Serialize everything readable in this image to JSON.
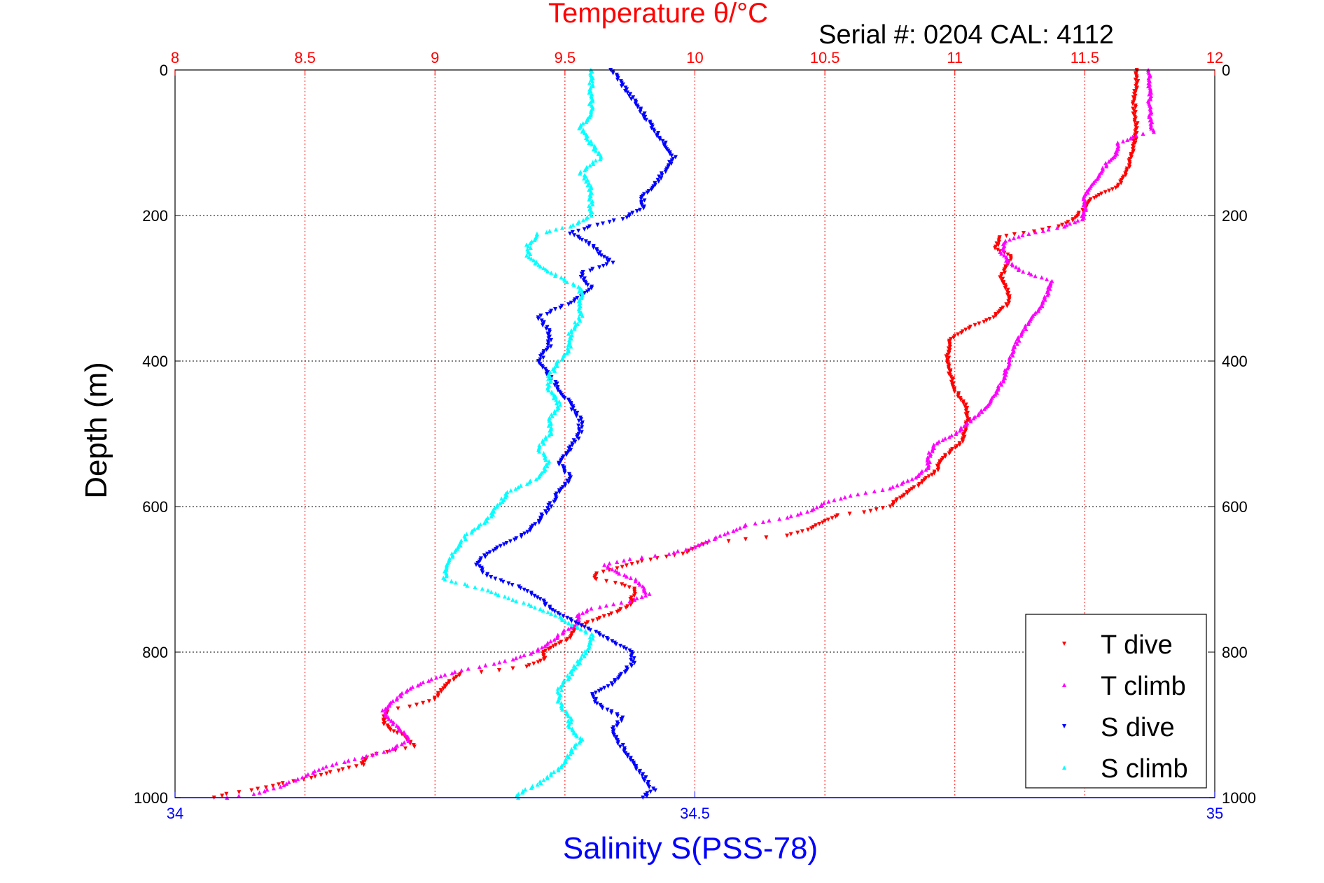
{
  "chart_data": {
    "type": "scatter",
    "title": "Temperature θ/°C",
    "subtitle": "Serial #: 0204  CAL: 4112",
    "top_axis": {
      "label": "Temperature θ/°C",
      "range": [
        8,
        12
      ],
      "ticks": [
        "8",
        "8.5",
        "9",
        "9.5",
        "10",
        "10.5",
        "11",
        "11.5",
        "12"
      ],
      "color": "#ff0000",
      "grid": true
    },
    "bottom_axis": {
      "label": "Salinity S(PSS-78)",
      "range": [
        34,
        35
      ],
      "ticks": [
        "34",
        "34.5",
        "35"
      ],
      "color": "#0000ff"
    },
    "y_axis": {
      "label": "Depth (m)",
      "range": [
        0,
        1000
      ],
      "reversed": true,
      "ticks": [
        "0",
        "200",
        "400",
        "600",
        "800",
        "1000"
      ],
      "grid": true
    },
    "legend": {
      "position": "bottom-right",
      "entries": [
        "T dive",
        "T climb",
        "S dive",
        "S climb"
      ]
    },
    "series": [
      {
        "name": "T dive",
        "axis": "temperature",
        "color": "#ff0000",
        "marker": "triangle-down",
        "points": [
          [
            11.7,
            0
          ],
          [
            11.7,
            20
          ],
          [
            11.69,
            40
          ],
          [
            11.69,
            60
          ],
          [
            11.7,
            80
          ],
          [
            11.69,
            100
          ],
          [
            11.68,
            120
          ],
          [
            11.66,
            140
          ],
          [
            11.63,
            160
          ],
          [
            11.56,
            170
          ],
          [
            11.52,
            180
          ],
          [
            11.5,
            190
          ],
          [
            11.46,
            205
          ],
          [
            11.4,
            215
          ],
          [
            11.3,
            222
          ],
          [
            11.17,
            230
          ],
          [
            11.16,
            245
          ],
          [
            11.22,
            258
          ],
          [
            11.2,
            270
          ],
          [
            11.18,
            285
          ],
          [
            11.2,
            300
          ],
          [
            11.21,
            320
          ],
          [
            11.15,
            340
          ],
          [
            11.05,
            355
          ],
          [
            10.98,
            370
          ],
          [
            10.97,
            400
          ],
          [
            10.98,
            415
          ],
          [
            11.0,
            440
          ],
          [
            11.04,
            460
          ],
          [
            11.05,
            480
          ],
          [
            11.04,
            500
          ],
          [
            11.02,
            515
          ],
          [
            10.98,
            525
          ],
          [
            10.94,
            540
          ],
          [
            10.93,
            550
          ],
          [
            10.88,
            565
          ],
          [
            10.82,
            580
          ],
          [
            10.78,
            590
          ],
          [
            10.75,
            600
          ],
          [
            10.65,
            608
          ],
          [
            10.55,
            612
          ],
          [
            10.5,
            620
          ],
          [
            10.45,
            630
          ],
          [
            10.35,
            640
          ],
          [
            10.2,
            645
          ],
          [
            10.05,
            650
          ],
          [
            9.95,
            665
          ],
          [
            9.8,
            675
          ],
          [
            9.7,
            685
          ],
          [
            9.62,
            692
          ],
          [
            9.62,
            700
          ],
          [
            9.7,
            705
          ],
          [
            9.77,
            713
          ],
          [
            9.76,
            725
          ],
          [
            9.75,
            735
          ],
          [
            9.7,
            745
          ],
          [
            9.62,
            755
          ],
          [
            9.55,
            765
          ],
          [
            9.52,
            780
          ],
          [
            9.47,
            790
          ],
          [
            9.42,
            800
          ],
          [
            9.42,
            810
          ],
          [
            9.35,
            820
          ],
          [
            9.25,
            825
          ],
          [
            9.1,
            830
          ],
          [
            9.06,
            840
          ],
          [
            9.03,
            850
          ],
          [
            9.0,
            865
          ],
          [
            8.96,
            870
          ],
          [
            8.9,
            875
          ],
          [
            8.82,
            880
          ],
          [
            8.8,
            895
          ],
          [
            8.82,
            905
          ],
          [
            8.88,
            915
          ],
          [
            8.92,
            930
          ],
          [
            8.85,
            935
          ],
          [
            8.78,
            940
          ],
          [
            8.74,
            945
          ],
          [
            8.72,
            955
          ],
          [
            8.6,
            965
          ],
          [
            8.5,
            975
          ],
          [
            8.42,
            980
          ],
          [
            8.3,
            990
          ],
          [
            8.2,
            995
          ],
          [
            8.15,
            1000
          ]
        ]
      },
      {
        "name": "T climb",
        "axis": "temperature",
        "color": "#ff00ff",
        "marker": "triangle-up",
        "points": [
          [
            11.75,
            0
          ],
          [
            11.75,
            20
          ],
          [
            11.75,
            40
          ],
          [
            11.75,
            60
          ],
          [
            11.76,
            85
          ],
          [
            11.7,
            90
          ],
          [
            11.63,
            100
          ],
          [
            11.62,
            115
          ],
          [
            11.58,
            130
          ],
          [
            11.55,
            150
          ],
          [
            11.52,
            162
          ],
          [
            11.5,
            175
          ],
          [
            11.5,
            190
          ],
          [
            11.49,
            205
          ],
          [
            11.42,
            215
          ],
          [
            11.28,
            225
          ],
          [
            11.19,
            235
          ],
          [
            11.18,
            250
          ],
          [
            11.2,
            262
          ],
          [
            11.25,
            275
          ],
          [
            11.33,
            285
          ],
          [
            11.37,
            290
          ],
          [
            11.36,
            305
          ],
          [
            11.34,
            320
          ],
          [
            11.3,
            340
          ],
          [
            11.25,
            365
          ],
          [
            11.22,
            390
          ],
          [
            11.2,
            410
          ],
          [
            11.18,
            430
          ],
          [
            11.14,
            455
          ],
          [
            11.1,
            470
          ],
          [
            11.05,
            485
          ],
          [
            11.0,
            500
          ],
          [
            10.92,
            515
          ],
          [
            10.9,
            530
          ],
          [
            10.9,
            545
          ],
          [
            10.85,
            560
          ],
          [
            10.75,
            575
          ],
          [
            10.6,
            585
          ],
          [
            10.5,
            595
          ],
          [
            10.45,
            605
          ],
          [
            10.35,
            615
          ],
          [
            10.2,
            625
          ],
          [
            10.1,
            640
          ],
          [
            10.0,
            655
          ],
          [
            9.9,
            665
          ],
          [
            9.75,
            672
          ],
          [
            9.65,
            680
          ],
          [
            9.7,
            690
          ],
          [
            9.77,
            700
          ],
          [
            9.8,
            712
          ],
          [
            9.82,
            720
          ],
          [
            9.75,
            730
          ],
          [
            9.6,
            740
          ],
          [
            9.55,
            750
          ],
          [
            9.55,
            760
          ],
          [
            9.5,
            770
          ],
          [
            9.45,
            785
          ],
          [
            9.38,
            800
          ],
          [
            9.3,
            810
          ],
          [
            9.2,
            818
          ],
          [
            9.1,
            825
          ],
          [
            9.0,
            835
          ],
          [
            8.9,
            850
          ],
          [
            8.85,
            865
          ],
          [
            8.8,
            880
          ],
          [
            8.82,
            892
          ],
          [
            8.88,
            910
          ],
          [
            8.9,
            922
          ],
          [
            8.82,
            935
          ],
          [
            8.72,
            945
          ],
          [
            8.6,
            955
          ],
          [
            8.5,
            970
          ],
          [
            8.4,
            985
          ],
          [
            8.3,
            995
          ],
          [
            8.2,
            1000
          ]
        ]
      },
      {
        "name": "S dive",
        "axis": "salinity",
        "color": "#0000ff",
        "marker": "triangle-down",
        "points": [
          [
            34.42,
            0
          ],
          [
            34.43,
            20
          ],
          [
            34.44,
            40
          ],
          [
            34.45,
            60
          ],
          [
            34.46,
            80
          ],
          [
            34.47,
            100
          ],
          [
            34.48,
            120
          ],
          [
            34.47,
            140
          ],
          [
            34.46,
            160
          ],
          [
            34.45,
            175
          ],
          [
            34.45,
            190
          ],
          [
            34.43,
            205
          ],
          [
            34.4,
            215
          ],
          [
            34.38,
            225
          ],
          [
            34.4,
            240
          ],
          [
            34.41,
            255
          ],
          [
            34.42,
            265
          ],
          [
            34.39,
            280
          ],
          [
            34.4,
            300
          ],
          [
            34.38,
            320
          ],
          [
            34.35,
            340
          ],
          [
            34.36,
            360
          ],
          [
            34.36,
            380
          ],
          [
            34.35,
            400
          ],
          [
            34.36,
            420
          ],
          [
            34.37,
            440
          ],
          [
            34.38,
            460
          ],
          [
            34.39,
            480
          ],
          [
            34.39,
            500
          ],
          [
            34.38,
            520
          ],
          [
            34.37,
            540
          ],
          [
            34.38,
            560
          ],
          [
            34.37,
            580
          ],
          [
            34.36,
            600
          ],
          [
            34.35,
            620
          ],
          [
            34.34,
            635
          ],
          [
            34.32,
            650
          ],
          [
            34.3,
            665
          ],
          [
            34.29,
            680
          ],
          [
            34.3,
            695
          ],
          [
            34.33,
            710
          ],
          [
            34.35,
            725
          ],
          [
            34.36,
            740
          ],
          [
            34.38,
            755
          ],
          [
            34.4,
            770
          ],
          [
            34.42,
            785
          ],
          [
            34.44,
            800
          ],
          [
            34.44,
            815
          ],
          [
            34.43,
            830
          ],
          [
            34.42,
            845
          ],
          [
            34.4,
            860
          ],
          [
            34.41,
            875
          ],
          [
            34.43,
            890
          ],
          [
            34.42,
            910
          ],
          [
            34.43,
            930
          ],
          [
            34.44,
            950
          ],
          [
            34.45,
            970
          ],
          [
            34.46,
            990
          ],
          [
            34.45,
            1000
          ]
        ]
      },
      {
        "name": "S climb",
        "axis": "salinity",
        "color": "#00ffff",
        "marker": "triangle-up",
        "points": [
          [
            34.4,
            0
          ],
          [
            34.4,
            20
          ],
          [
            34.4,
            40
          ],
          [
            34.4,
            60
          ],
          [
            34.39,
            80
          ],
          [
            34.4,
            100
          ],
          [
            34.41,
            120
          ],
          [
            34.39,
            140
          ],
          [
            34.4,
            160
          ],
          [
            34.4,
            180
          ],
          [
            34.4,
            200
          ],
          [
            34.38,
            215
          ],
          [
            34.35,
            225
          ],
          [
            34.34,
            240
          ],
          [
            34.34,
            255
          ],
          [
            34.35,
            270
          ],
          [
            34.37,
            285
          ],
          [
            34.39,
            300
          ],
          [
            34.39,
            320
          ],
          [
            34.39,
            340
          ],
          [
            34.38,
            360
          ],
          [
            34.38,
            380
          ],
          [
            34.37,
            400
          ],
          [
            34.36,
            420
          ],
          [
            34.36,
            440
          ],
          [
            34.37,
            460
          ],
          [
            34.36,
            480
          ],
          [
            34.36,
            500
          ],
          [
            34.35,
            520
          ],
          [
            34.36,
            540
          ],
          [
            34.35,
            560
          ],
          [
            34.32,
            580
          ],
          [
            34.31,
            600
          ],
          [
            34.3,
            620
          ],
          [
            34.28,
            640
          ],
          [
            34.27,
            660
          ],
          [
            34.26,
            680
          ],
          [
            34.26,
            700
          ],
          [
            34.3,
            715
          ],
          [
            34.33,
            730
          ],
          [
            34.36,
            745
          ],
          [
            34.38,
            760
          ],
          [
            34.4,
            775
          ],
          [
            34.4,
            790
          ],
          [
            34.39,
            810
          ],
          [
            34.38,
            830
          ],
          [
            34.37,
            850
          ],
          [
            34.37,
            870
          ],
          [
            34.38,
            890
          ],
          [
            34.38,
            905
          ],
          [
            34.39,
            920
          ],
          [
            34.38,
            940
          ],
          [
            34.37,
            960
          ],
          [
            34.35,
            980
          ],
          [
            34.33,
            995
          ],
          [
            34.33,
            1000
          ]
        ]
      }
    ]
  }
}
